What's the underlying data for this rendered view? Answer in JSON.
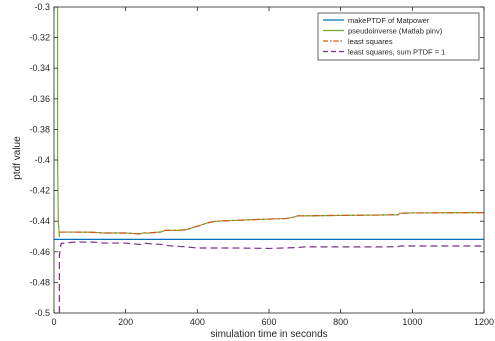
{
  "chart_data": {
    "type": "line",
    "title": "",
    "xlabel": "simulation time in seconds",
    "ylabel": "ptdf value",
    "xlim": [
      0,
      1200
    ],
    "ylim": [
      -0.5,
      -0.3
    ],
    "xticks": [
      0,
      200,
      400,
      600,
      800,
      1000,
      1200
    ],
    "xtick_labels": [
      "0",
      "200",
      "400",
      "600",
      "800",
      "1000",
      "1200"
    ],
    "yticks": [
      -0.5,
      -0.48,
      -0.46,
      -0.44,
      -0.42,
      -0.4,
      -0.38,
      -0.36,
      -0.34,
      -0.32,
      -0.3
    ],
    "ytick_labels": [
      "-0.5",
      "-0.48",
      "-0.46",
      "-0.44",
      "-0.42",
      "-0.4",
      "-0.38",
      "-0.36",
      "-0.34",
      "-0.32",
      "-0.3"
    ],
    "grid": false,
    "legend_position": "top-right",
    "series": [
      {
        "name": "makePTDF of Matpower",
        "color": "#0072BD",
        "dash": "solid",
        "x": [
          0,
          1200
        ],
        "y": [
          -0.4519,
          -0.4519
        ]
      },
      {
        "name": "pseudoinverse (Matlab pinv)",
        "color": "#77AC30",
        "dash": "solid",
        "x": [
          10,
          10,
          12,
          15,
          15,
          50,
          100,
          130,
          135,
          200,
          240,
          250,
          260,
          300,
          310,
          350,
          370,
          390,
          410,
          430,
          450,
          500,
          600,
          650,
          670,
          680,
          700,
          800,
          900,
          960,
          965,
          1000,
          1100,
          1200
        ],
        "y": [
          -0.3,
          -0.4,
          -0.44,
          -0.45,
          -0.4471,
          -0.4471,
          -0.4472,
          -0.4475,
          -0.4477,
          -0.4477,
          -0.4483,
          -0.4476,
          -0.4478,
          -0.447,
          -0.446,
          -0.446,
          -0.4455,
          -0.444,
          -0.4425,
          -0.441,
          -0.44,
          -0.4395,
          -0.4386,
          -0.4382,
          -0.4373,
          -0.4365,
          -0.4365,
          -0.4362,
          -0.436,
          -0.4358,
          -0.4348,
          -0.4346,
          -0.4345,
          -0.4344
        ]
      },
      {
        "name": "least squares",
        "color": "#D95319",
        "dash": "dashdot",
        "x": [
          15,
          50,
          100,
          130,
          135,
          200,
          240,
          250,
          260,
          300,
          310,
          350,
          370,
          390,
          410,
          430,
          450,
          500,
          600,
          650,
          670,
          680,
          700,
          800,
          900,
          960,
          965,
          1000,
          1100,
          1200
        ],
        "y": [
          -0.4471,
          -0.4471,
          -0.4472,
          -0.4475,
          -0.4477,
          -0.4477,
          -0.4483,
          -0.4476,
          -0.4478,
          -0.447,
          -0.446,
          -0.446,
          -0.4455,
          -0.444,
          -0.4425,
          -0.441,
          -0.44,
          -0.4395,
          -0.4386,
          -0.4382,
          -0.4373,
          -0.4365,
          -0.4365,
          -0.4362,
          -0.436,
          -0.4358,
          -0.4348,
          -0.4346,
          -0.4345,
          -0.4344
        ]
      },
      {
        "name": "least squares, sum PTDF = 1",
        "color": "#7E2F8E",
        "dash": "dashed",
        "x": [
          15,
          15,
          20,
          60,
          110,
          130,
          135,
          200,
          245,
          250,
          255,
          300,
          320,
          350,
          370,
          400,
          500,
          600,
          680,
          700,
          800,
          900,
          960,
          965,
          1000,
          1100,
          1200
        ],
        "y": [
          -0.5,
          -0.462,
          -0.4545,
          -0.4536,
          -0.4537,
          -0.4539,
          -0.4543,
          -0.4543,
          -0.4553,
          -0.4545,
          -0.4545,
          -0.4552,
          -0.456,
          -0.4565,
          -0.4568,
          -0.4575,
          -0.4575,
          -0.4578,
          -0.4572,
          -0.4568,
          -0.4568,
          -0.4568,
          -0.4567,
          -0.4562,
          -0.4562,
          -0.4562,
          -0.4562
        ]
      }
    ]
  }
}
